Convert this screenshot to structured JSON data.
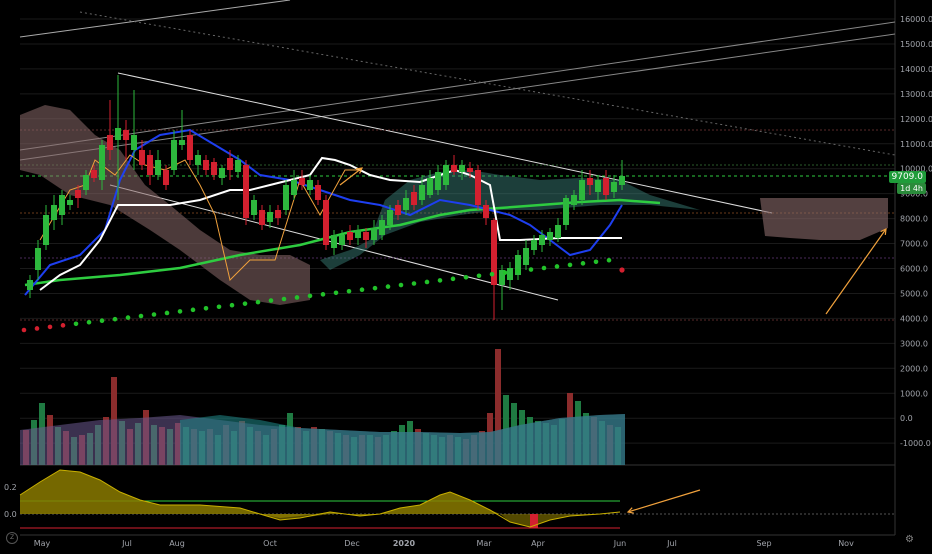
{
  "colors": {
    "background": "#000000",
    "bull": "#2db83d",
    "bear": "#d3202f",
    "tenkan": "#1e3ff0",
    "kijun": "#ffffff",
    "ma": "#2ecc40",
    "lagging": "#f0a13c",
    "cloud_green": "#3e8a80",
    "cloud_red": "#8a6a6a",
    "sar_green": "#22c22a",
    "sar_red": "#d3202f",
    "vol_bull": "#1f7a42",
    "vol_bear": "#8b2c2c",
    "vol_ma_a": "#6b5a8f",
    "vol_ma_b": "#1f8a8a",
    "osc_area": "#8a7a00",
    "arrow": "#f0a13c",
    "price_tag_bg": "#1f9c3a"
  },
  "price_axis": {
    "ticks": [
      "16000.0",
      "15000.0",
      "14000.0",
      "13000.0",
      "12000.0",
      "11000.0",
      "10000.0",
      "9000.0",
      "8000.0",
      "7000.0",
      "6000.0",
      "5000.0",
      "4000.0",
      "3000.0",
      "2000.0",
      "1000.0",
      "0.0",
      "-1000.0"
    ],
    "current_price_label": "9709.0",
    "timeframe_badge": "1d 4h"
  },
  "osc_axis": {
    "ticks": [
      "0.2",
      "0.0"
    ]
  },
  "time_axis": {
    "labels": [
      "May",
      "Jul",
      "Aug",
      "Oct",
      "Dec",
      "2020",
      "Mar",
      "Apr",
      "Jun",
      "Jul",
      "Sep",
      "Nov"
    ]
  },
  "ui": {
    "logo_icon": "tradingview-logo-icon",
    "settings_icon": "settings-icon"
  }
}
